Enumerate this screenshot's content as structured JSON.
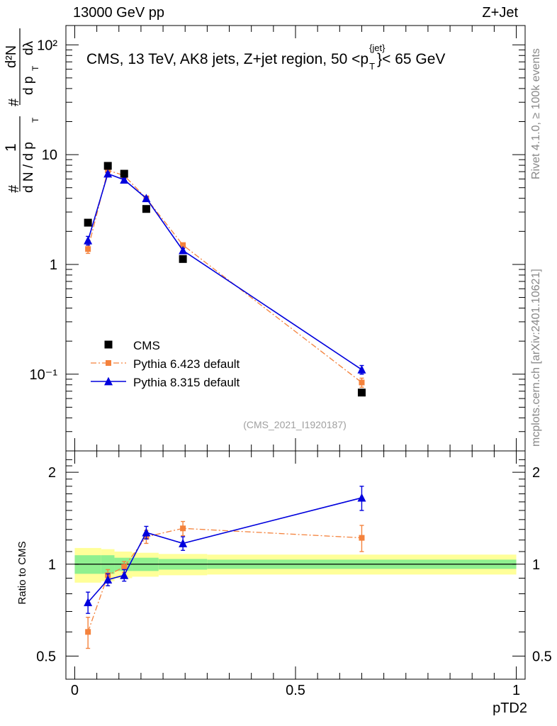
{
  "header": {
    "left": "13000 GeV pp",
    "right": "Z+Jet"
  },
  "side": {
    "rivet": "Rivet 4.1.0, ≥ 100k events",
    "mcplots": "mcplots.cern.ch [arXiv:2401.10621]"
  },
  "ylabel_parts": {
    "hash": "#",
    "one": "1",
    "dN": "d N / d p",
    "T": "T",
    "dpT": "d p",
    "d2N": "d²N",
    "dlambda": "dλ"
  },
  "ratio_ylabel": "Ratio to CMS",
  "colors": {
    "cms": "#000000",
    "py6": "#f4823c",
    "py8": "#0000dd",
    "band_inner": "#8ff08f",
    "band_outer": "#ffff99"
  },
  "chart_data": [
    {
      "type": "scatter",
      "panel": "main",
      "title": "CMS, 13 TeV, AK8 jets, Z+jet region, 50 <p",
      "title_sup": "{jet}",
      "title_sub": "T",
      "title_tail": "}< 65 GeV",
      "analysis": "(CMS_2021_I1920187)",
      "yscale": "log",
      "ylim": [
        0.02,
        150
      ],
      "xlim": [
        -0.02,
        1.02
      ],
      "ytick_labels": [
        "10⁻¹",
        "1",
        "10",
        "10²"
      ],
      "ytick_values": [
        0.1,
        1,
        10,
        100
      ],
      "x": [
        0.03,
        0.075,
        0.112,
        0.162,
        0.245,
        0.65
      ],
      "series": [
        {
          "name": "CMS",
          "marker": "square",
          "values": [
            2.4,
            7.9,
            6.7,
            3.2,
            1.12,
            0.068
          ]
        },
        {
          "name": "Pythia 6.423 default",
          "marker": "square-small",
          "line": "dashdot",
          "values": [
            1.38,
            7.2,
            6.45,
            4.0,
            1.5,
            0.084
          ],
          "err": [
            0.12,
            0.2,
            0.2,
            0.12,
            0.06,
            0.008
          ]
        },
        {
          "name": "Pythia 8.315 default",
          "marker": "triangle",
          "line": "solid",
          "values": [
            1.65,
            6.7,
            5.9,
            4.0,
            1.34,
            0.11
          ],
          "err": [
            0.15,
            0.2,
            0.2,
            0.12,
            0.06,
            0.01
          ]
        }
      ]
    },
    {
      "type": "scatter",
      "panel": "ratio",
      "ylabel": "Ratio to CMS",
      "xlabel": "pTD2",
      "xlim": [
        -0.02,
        1.02
      ],
      "ylim": [
        0.42,
        2.35
      ],
      "yscale": "log",
      "ytick_labels": [
        "0.5",
        "1",
        "2"
      ],
      "ytick_values": [
        0.5,
        1,
        2
      ],
      "xtick_labels": [
        "0",
        "0.5",
        "1"
      ],
      "xtick_values": [
        0,
        0.5,
        1
      ],
      "x": [
        0.03,
        0.075,
        0.112,
        0.162,
        0.245,
        0.65
      ],
      "series": [
        {
          "name": "Pythia 6.423 default",
          "values": [
            0.6,
            0.92,
            0.98,
            1.23,
            1.31,
            1.22
          ],
          "err": [
            0.07,
            0.04,
            0.04,
            0.06,
            0.07,
            0.12
          ]
        },
        {
          "name": "Pythia 8.315 default",
          "values": [
            0.75,
            0.89,
            0.92,
            1.27,
            1.17,
            1.65
          ],
          "err": [
            0.06,
            0.04,
            0.04,
            0.06,
            0.06,
            0.15
          ]
        }
      ],
      "band": {
        "edges": [
          0.0,
          0.06,
          0.09,
          0.13,
          0.19,
          0.3,
          1.0
        ],
        "inner_low": [
          0.93,
          0.93,
          0.95,
          0.95,
          0.96,
          0.965
        ],
        "inner_high": [
          1.07,
          1.07,
          1.05,
          1.05,
          1.04,
          1.035
        ],
        "outer_low": [
          0.87,
          0.88,
          0.9,
          0.91,
          0.92,
          0.925
        ],
        "outer_high": [
          1.13,
          1.12,
          1.1,
          1.09,
          1.08,
          1.075
        ]
      }
    }
  ]
}
